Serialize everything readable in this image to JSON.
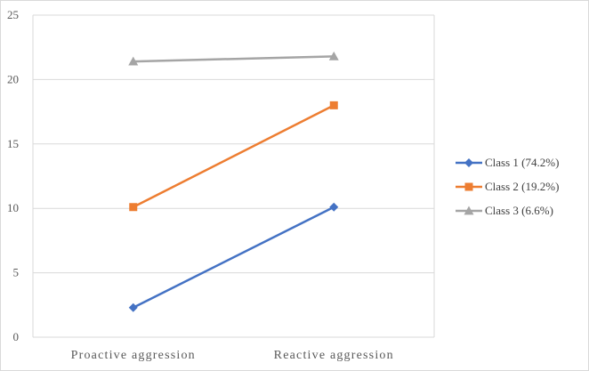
{
  "chart_data": {
    "type": "line",
    "title": "",
    "xlabel": "",
    "ylabel": "",
    "categories": [
      "Proactive aggression",
      "Reactive aggression"
    ],
    "ylim": [
      0,
      25
    ],
    "yticks": [
      0,
      5,
      10,
      15,
      20,
      25
    ],
    "grid": true,
    "legend_position": "right",
    "series": [
      {
        "name": "Class 1 (74.2%)",
        "values": [
          2.3,
          10.1
        ],
        "color": "#4472C4",
        "marker": "diamond"
      },
      {
        "name": "Class 2 (19.2%)",
        "values": [
          10.1,
          18.0
        ],
        "color": "#ED7D31",
        "marker": "square"
      },
      {
        "name": "Class 3 (6.6%)",
        "values": [
          21.4,
          21.8
        ],
        "color": "#A5A5A5",
        "marker": "triangle"
      }
    ]
  }
}
